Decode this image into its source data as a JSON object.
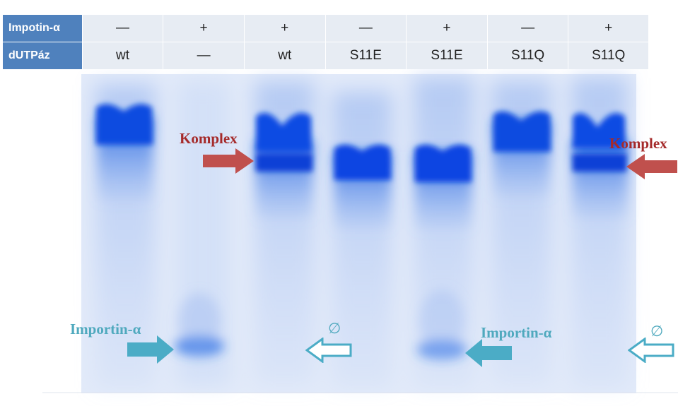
{
  "header_table": {
    "rows": [
      {
        "label": "Impotin-α",
        "cells": [
          "—",
          "+",
          "+",
          "—",
          "+",
          "—",
          "+"
        ]
      },
      {
        "label": "dUTPáz",
        "cells": [
          "wt",
          "—",
          "wt",
          "S11E",
          "S11E",
          "S11Q",
          "S11Q"
        ]
      }
    ],
    "header_color": "#4f81bd",
    "cell_color": "#e7ecf3"
  },
  "gel": {
    "lane_count": 7,
    "band_color": "#0a4fd9",
    "background_color": "#e6eefb"
  },
  "annotations": {
    "komplex_left": "Komplex",
    "komplex_right": "Komplex",
    "importin_left": "Importin-α",
    "importin_right": "Importin-α",
    "empty_left": "∅",
    "empty_right": "∅",
    "komplex_arrow_color": "#c0504d",
    "importin_arrow_color": "#4bacc6"
  }
}
